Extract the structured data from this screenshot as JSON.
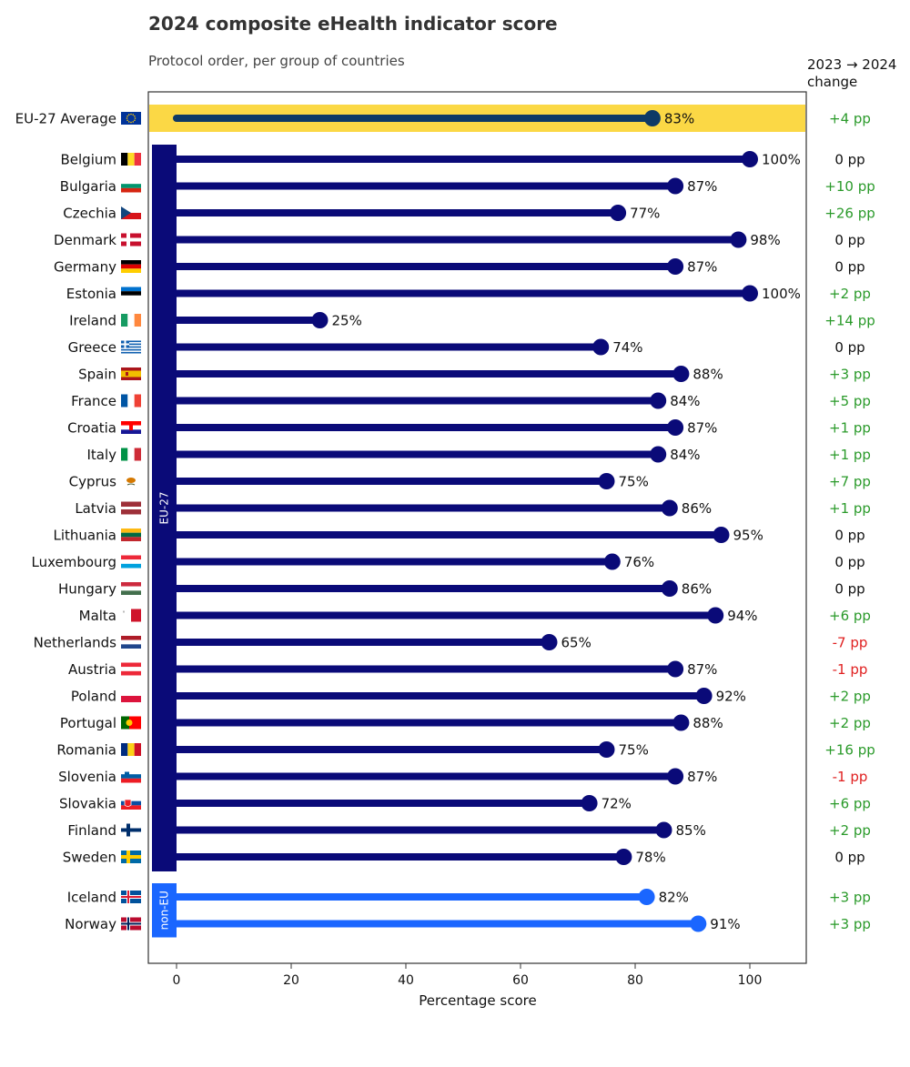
{
  "title": "2024 composite eHealth indicator score",
  "subtitle": "Protocol order, per group of countries",
  "change_header": "2023 → 2024\nchange",
  "colors": {
    "eu_bar": "#0a0a78",
    "noneu_bar": "#1a66ff",
    "avg_bar": "#0e3a66",
    "avg_band": "#fbd845",
    "positive": "#2a9a2a",
    "negative": "#e02020",
    "neutral": "#111111"
  },
  "chart_data": {
    "type": "lollipop",
    "title": "2024 composite eHealth indicator score",
    "subtitle": "Protocol order, per group of countries",
    "xlabel": "Percentage score",
    "xlim": [
      -5,
      110
    ],
    "xticks": [
      0,
      20,
      40,
      60,
      80,
      100
    ],
    "groups": [
      {
        "name": "EU-27",
        "color": "#0a0a78"
      },
      {
        "name": "non-EU",
        "color": "#1a66ff"
      }
    ],
    "average": {
      "label": "EU-27 Average",
      "value": 83,
      "value_label": "83%",
      "change": "+4 pp",
      "flag": "eu-flag-icon"
    },
    "rows": [
      {
        "country": "Belgium",
        "value": 100,
        "value_label": "100%",
        "change": "0 pp",
        "group": "EU-27",
        "flag": "belgium-flag-icon"
      },
      {
        "country": "Bulgaria",
        "value": 87,
        "value_label": "87%",
        "change": "+10 pp",
        "group": "EU-27",
        "flag": "bulgaria-flag-icon"
      },
      {
        "country": "Czechia",
        "value": 77,
        "value_label": "77%",
        "change": "+26 pp",
        "group": "EU-27",
        "flag": "czechia-flag-icon"
      },
      {
        "country": "Denmark",
        "value": 98,
        "value_label": "98%",
        "change": "0 pp",
        "group": "EU-27",
        "flag": "denmark-flag-icon"
      },
      {
        "country": "Germany",
        "value": 87,
        "value_label": "87%",
        "change": "0 pp",
        "group": "EU-27",
        "flag": "germany-flag-icon"
      },
      {
        "country": "Estonia",
        "value": 100,
        "value_label": "100%",
        "change": "+2 pp",
        "group": "EU-27",
        "flag": "estonia-flag-icon"
      },
      {
        "country": "Ireland",
        "value": 25,
        "value_label": "25%",
        "change": "+14 pp",
        "group": "EU-27",
        "flag": "ireland-flag-icon"
      },
      {
        "country": "Greece",
        "value": 74,
        "value_label": "74%",
        "change": "0 pp",
        "group": "EU-27",
        "flag": "greece-flag-icon"
      },
      {
        "country": "Spain",
        "value": 88,
        "value_label": "88%",
        "change": "+3 pp",
        "group": "EU-27",
        "flag": "spain-flag-icon"
      },
      {
        "country": "France",
        "value": 84,
        "value_label": "84%",
        "change": "+5 pp",
        "group": "EU-27",
        "flag": "france-flag-icon"
      },
      {
        "country": "Croatia",
        "value": 87,
        "value_label": "87%",
        "change": "+1 pp",
        "group": "EU-27",
        "flag": "croatia-flag-icon"
      },
      {
        "country": "Italy",
        "value": 84,
        "value_label": "84%",
        "change": "+1 pp",
        "group": "EU-27",
        "flag": "italy-flag-icon"
      },
      {
        "country": "Cyprus",
        "value": 75,
        "value_label": "75%",
        "change": "+7 pp",
        "group": "EU-27",
        "flag": "cyprus-flag-icon"
      },
      {
        "country": "Latvia",
        "value": 86,
        "value_label": "86%",
        "change": "+1 pp",
        "group": "EU-27",
        "flag": "latvia-flag-icon"
      },
      {
        "country": "Lithuania",
        "value": 95,
        "value_label": "95%",
        "change": "0 pp",
        "group": "EU-27",
        "flag": "lithuania-flag-icon"
      },
      {
        "country": "Luxembourg",
        "value": 76,
        "value_label": "76%",
        "change": "0 pp",
        "group": "EU-27",
        "flag": "luxembourg-flag-icon"
      },
      {
        "country": "Hungary",
        "value": 86,
        "value_label": "86%",
        "change": "0 pp",
        "group": "EU-27",
        "flag": "hungary-flag-icon"
      },
      {
        "country": "Malta",
        "value": 94,
        "value_label": "94%",
        "change": "+6 pp",
        "group": "EU-27",
        "flag": "malta-flag-icon"
      },
      {
        "country": "Netherlands",
        "value": 65,
        "value_label": "65%",
        "change": "-7 pp",
        "group": "EU-27",
        "flag": "netherlands-flag-icon"
      },
      {
        "country": "Austria",
        "value": 87,
        "value_label": "87%",
        "change": "-1 pp",
        "group": "EU-27",
        "flag": "austria-flag-icon"
      },
      {
        "country": "Poland",
        "value": 92,
        "value_label": "92%",
        "change": "+2 pp",
        "group": "EU-27",
        "flag": "poland-flag-icon"
      },
      {
        "country": "Portugal",
        "value": 88,
        "value_label": "88%",
        "change": "+2 pp",
        "group": "EU-27",
        "flag": "portugal-flag-icon"
      },
      {
        "country": "Romania",
        "value": 75,
        "value_label": "75%",
        "change": "+16 pp",
        "group": "EU-27",
        "flag": "romania-flag-icon"
      },
      {
        "country": "Slovenia",
        "value": 87,
        "value_label": "87%",
        "change": "-1 pp",
        "group": "EU-27",
        "flag": "slovenia-flag-icon"
      },
      {
        "country": "Slovakia",
        "value": 72,
        "value_label": "72%",
        "change": "+6 pp",
        "group": "EU-27",
        "flag": "slovakia-flag-icon"
      },
      {
        "country": "Finland",
        "value": 85,
        "value_label": "85%",
        "change": "+2 pp",
        "group": "EU-27",
        "flag": "finland-flag-icon"
      },
      {
        "country": "Sweden",
        "value": 78,
        "value_label": "78%",
        "change": "0 pp",
        "group": "EU-27",
        "flag": "sweden-flag-icon"
      },
      {
        "country": "Iceland",
        "value": 82,
        "value_label": "82%",
        "change": "+3 pp",
        "group": "non-EU",
        "flag": "iceland-flag-icon"
      },
      {
        "country": "Norway",
        "value": 91,
        "value_label": "91%",
        "change": "+3 pp",
        "group": "non-EU",
        "flag": "norway-flag-icon"
      }
    ]
  }
}
